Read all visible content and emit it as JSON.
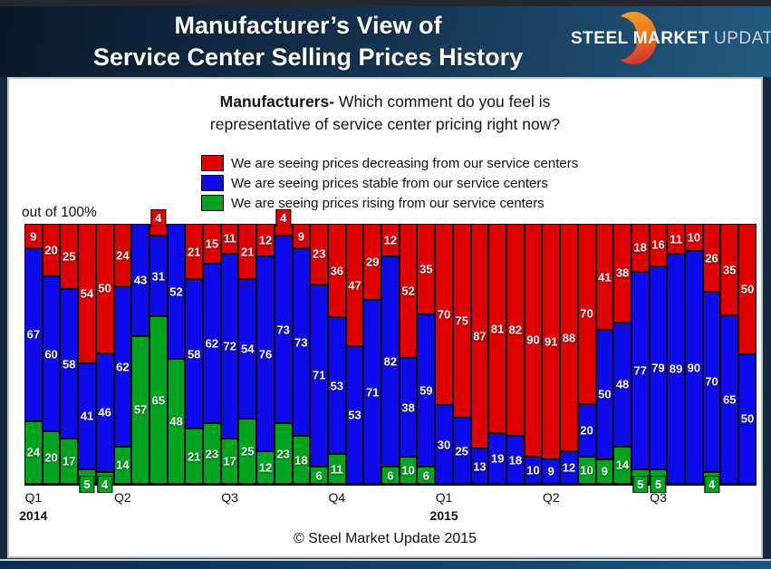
{
  "header": {
    "title_line1": "Manufacturer’s View of",
    "title_line2": "Service Center Selling Prices History",
    "logo": {
      "word1": "STEEL",
      "word2": "MARKET",
      "word3": "UPDATE"
    }
  },
  "question": {
    "lead": "Manufacturers-",
    "line1_rest": " Which comment do you feel is",
    "line2": "representative of service center pricing right now?"
  },
  "legend": [
    {
      "label": "We are seeing prices decreasing from our service centers",
      "color": "#e10000"
    },
    {
      "label": "We are seeing prices stable from our service centers",
      "color": "#0b0bec"
    },
    {
      "label": "We are seeing prices rising from our service centers",
      "color": "#00a41e"
    }
  ],
  "axis_note": "out of 100%",
  "footer": "© Steel Market Update 2015",
  "chart_data": {
    "type": "bar",
    "stacked": true,
    "unit": "percent of respondents (each bar sums to 100)",
    "ylim": [
      0,
      100
    ],
    "bars_total": 41,
    "legend_position": "top-left",
    "series": [
      {
        "name": "We are seeing prices decreasing from our service centers",
        "key": "decreasing",
        "color": "#e10000",
        "stack_position": "top",
        "values": [
          9,
          20,
          25,
          54,
          50,
          24,
          0,
          4,
          0,
          21,
          15,
          11,
          21,
          12,
          4,
          9,
          23,
          36,
          47,
          29,
          12,
          52,
          35,
          70,
          75,
          87,
          81,
          82,
          90,
          91,
          88,
          70,
          41,
          38,
          18,
          16,
          11,
          10,
          26,
          35,
          50
        ]
      },
      {
        "name": "We are seeing prices stable from our service centers",
        "key": "stable",
        "color": "#0b0bec",
        "stack_position": "middle",
        "values": [
          67,
          60,
          58,
          41,
          46,
          62,
          43,
          31,
          52,
          58,
          62,
          72,
          54,
          76,
          73,
          73,
          71,
          53,
          53,
          71,
          82,
          38,
          59,
          30,
          25,
          13,
          19,
          18,
          10,
          9,
          12,
          20,
          50,
          48,
          77,
          79,
          89,
          90,
          70,
          65,
          50
        ]
      },
      {
        "name": "We are seeing prices rising from our service centers",
        "key": "rising",
        "color": "#00a41e",
        "stack_position": "bottom",
        "values": [
          24,
          20,
          17,
          5,
          4,
          14,
          57,
          65,
          48,
          21,
          23,
          17,
          25,
          12,
          23,
          18,
          6,
          11,
          0,
          0,
          6,
          10,
          6,
          0,
          0,
          0,
          0,
          0,
          0,
          0,
          0,
          10,
          9,
          14,
          5,
          5,
          0,
          0,
          4,
          0,
          0
        ]
      }
    ],
    "x_ticks": [
      {
        "label": "Q1",
        "year": "2014",
        "bar": 1
      },
      {
        "label": "Q2",
        "bar": 6
      },
      {
        "label": "Q3",
        "bar": 12
      },
      {
        "label": "Q4",
        "bar": 18
      },
      {
        "label": "Q1",
        "year": "2015",
        "bar": 24
      },
      {
        "label": "Q2",
        "bar": 30
      },
      {
        "label": "Q3",
        "bar": 36
      }
    ]
  }
}
